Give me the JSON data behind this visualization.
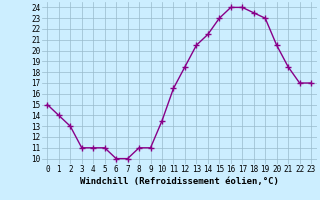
{
  "x": [
    0,
    1,
    2,
    3,
    4,
    5,
    6,
    7,
    8,
    9,
    10,
    11,
    12,
    13,
    14,
    15,
    16,
    17,
    18,
    19,
    20,
    21,
    22,
    23
  ],
  "y": [
    15,
    14,
    13,
    11,
    11,
    11,
    10,
    10,
    11,
    11,
    13.5,
    16.5,
    18.5,
    20.5,
    21.5,
    23,
    24,
    24,
    23.5,
    23,
    20.5,
    18.5,
    17,
    17
  ],
  "line_color": "#880088",
  "marker": "+",
  "marker_size": 4,
  "marker_linewidth": 1.0,
  "linewidth": 1.0,
  "background_color": "#cceeff",
  "grid_color": "#99bbcc",
  "xlabel": "Windchill (Refroidissement éolien,°C)",
  "xlabel_fontsize": 6.5,
  "tick_fontsize": 5.5,
  "xlim": [
    -0.5,
    23.5
  ],
  "ylim": [
    9.5,
    24.5
  ],
  "yticks": [
    10,
    11,
    12,
    13,
    14,
    15,
    16,
    17,
    18,
    19,
    20,
    21,
    22,
    23,
    24
  ],
  "xticks": [
    0,
    1,
    2,
    3,
    4,
    5,
    6,
    7,
    8,
    9,
    10,
    11,
    12,
    13,
    14,
    15,
    16,
    17,
    18,
    19,
    20,
    21,
    22,
    23
  ]
}
